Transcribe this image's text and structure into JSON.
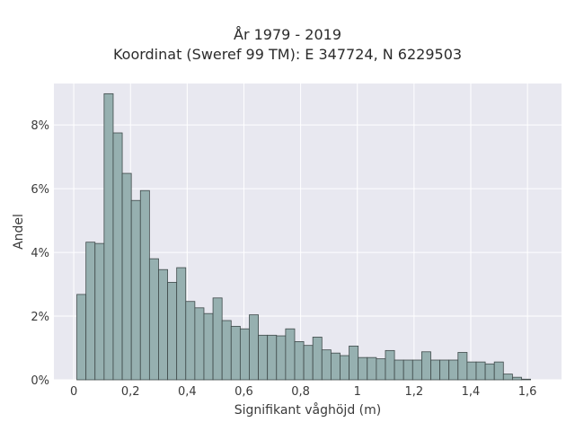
{
  "chart_data": {
    "type": "bar",
    "title": "År 1979 - 2019",
    "subtitle": "Koordinat (Sweref 99 TM): E 347724, N 6229503",
    "xlabel": "Signifikant våghöjd (m)",
    "ylabel": "Andel",
    "xlim": [
      -0.07,
      1.72
    ],
    "ylim": [
      0,
      0.093
    ],
    "x_ticks": [
      0,
      0.2,
      0.4,
      0.6,
      0.8,
      1.0,
      1.2,
      1.4,
      1.6
    ],
    "x_tick_labels": [
      "0",
      "0,2",
      "0,4",
      "0,6",
      "0,8",
      "1",
      "1,2",
      "1,4",
      "1,6"
    ],
    "y_ticks": [
      0,
      0.02,
      0.04,
      0.06,
      0.08
    ],
    "y_tick_labels": [
      "0%",
      "2%",
      "4%",
      "6%",
      "8%"
    ],
    "grid": true,
    "bin_width": 0.032,
    "bin_start": 0.011,
    "values": [
      0.0268,
      0.0432,
      0.0428,
      0.0898,
      0.0775,
      0.0648,
      0.0563,
      0.0594,
      0.038,
      0.0346,
      0.0306,
      0.0352,
      0.0246,
      0.0226,
      0.0208,
      0.0257,
      0.0186,
      0.0168,
      0.016,
      0.0204,
      0.014,
      0.014,
      0.0138,
      0.016,
      0.012,
      0.0108,
      0.0134,
      0.0094,
      0.0084,
      0.0076,
      0.0106,
      0.007,
      0.007,
      0.0066,
      0.0092,
      0.0062,
      0.0062,
      0.0062,
      0.0088,
      0.0062,
      0.0062,
      0.0062,
      0.0086,
      0.0056,
      0.0056,
      0.005,
      0.0056,
      0.0018,
      0.0008,
      0.0002
    ],
    "colors": {
      "bar": "#96b0b0",
      "edge": "#3f4a4a",
      "plot_bg": "#e8e8f0",
      "grid": "#ffffff"
    }
  }
}
